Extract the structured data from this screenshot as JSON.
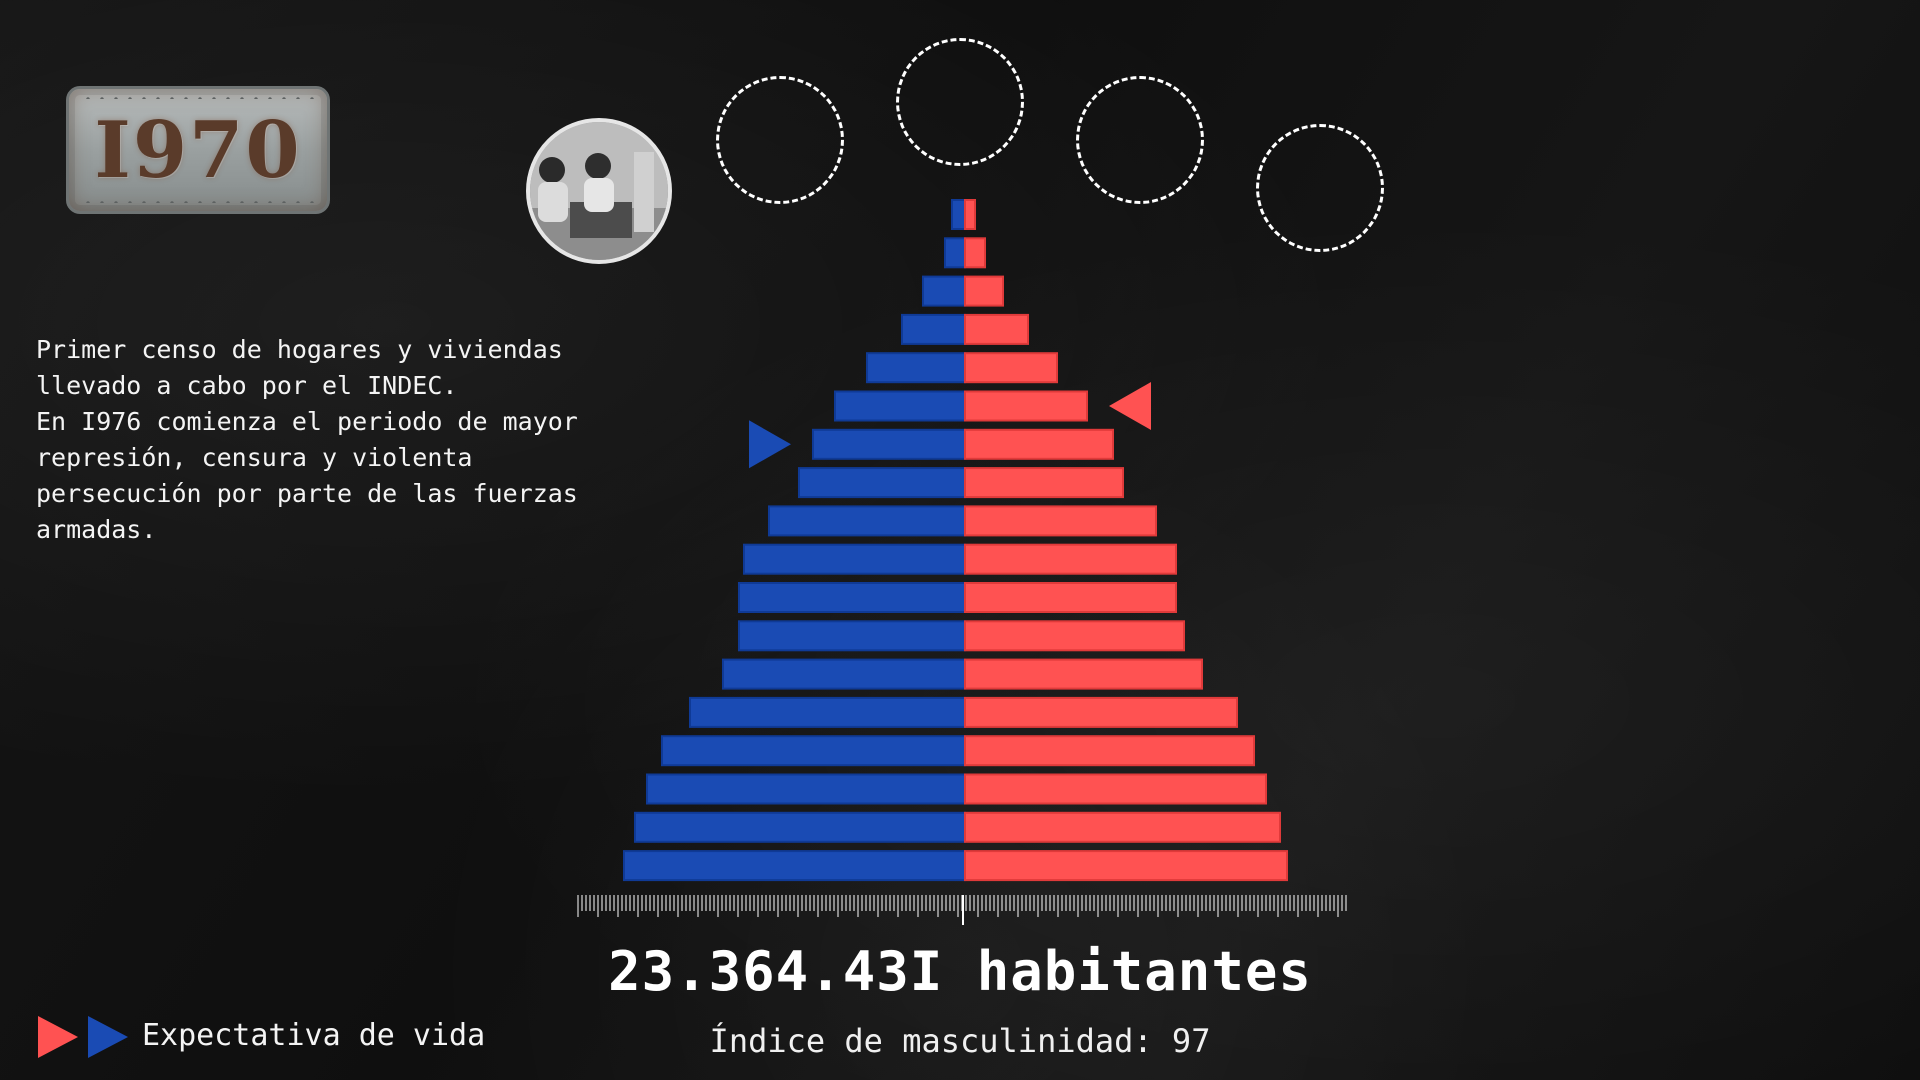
{
  "year": "I970",
  "description": "Primer censo de hogares y viviendas\nllevado a cabo por el INDEC.\nEn I976 comienza el periodo de mayor\nrepresión, censura y violenta\npersecución por parte de las fuerzas\narmadas.",
  "legend_label": "Expectativa de vida",
  "total_text": "23.364.43I habitantes",
  "masculinity_text": "Índice de masculinidad: 97",
  "colors": {
    "male": "#1a4bb4",
    "female": "#ff5252"
  },
  "chart_data": {
    "type": "bar",
    "orientation": "horizontal-pyramid",
    "categories_top_to_bottom": [
      "g1",
      "g2",
      "g3",
      "g4",
      "g5",
      "g6",
      "g7",
      "g8",
      "g9",
      "g10",
      "g11",
      "g12",
      "g13",
      "g14",
      "g15",
      "g16",
      "g17",
      "g18"
    ],
    "series": [
      {
        "values": [
          13,
          20,
          42,
          63,
          98,
          130,
          152,
          166,
          196,
          221,
          226,
          226,
          242,
          275,
          303,
          318,
          330,
          341
        ]
      },
      {
        "values": [
          10,
          20,
          38,
          63,
          92,
          122,
          148,
          158,
          191,
          211,
          211,
          219,
          237,
          272,
          289,
          301,
          315,
          322
        ]
      }
    ],
    "life_expectancy_markers": {
      "male_row": 6,
      "female_row": 5
    }
  }
}
